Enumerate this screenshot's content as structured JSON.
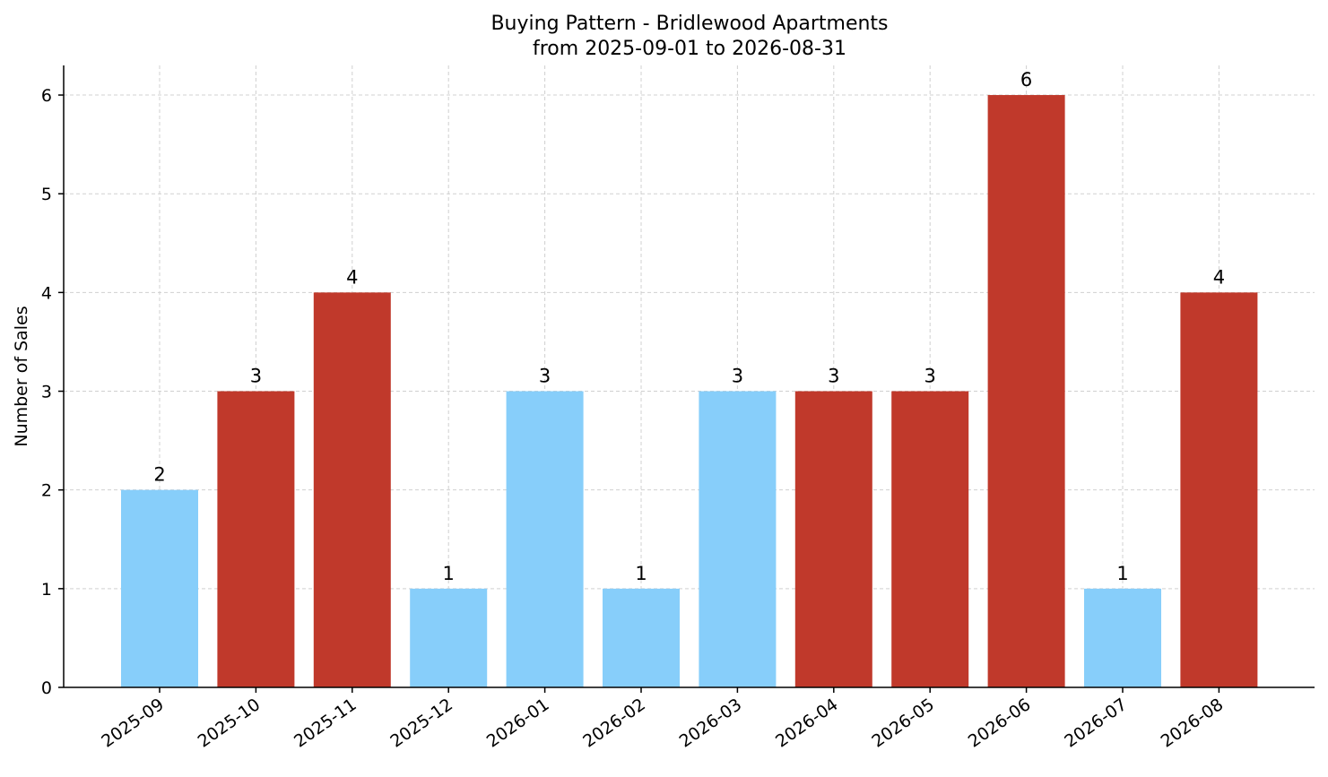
{
  "chart_data": {
    "type": "bar",
    "title": "Buying Pattern - Bridlewood Apartments",
    "subtitle": "from 2025-09-01 to 2026-08-31",
    "xlabel": "",
    "ylabel": "Number of Sales",
    "categories": [
      "2025-09",
      "2025-10",
      "2025-11",
      "2025-12",
      "2026-01",
      "2026-02",
      "2026-03",
      "2026-04",
      "2026-05",
      "2026-06",
      "2026-07",
      "2026-08"
    ],
    "values": [
      2,
      3,
      4,
      1,
      3,
      1,
      3,
      3,
      3,
      6,
      1,
      4
    ],
    "bar_colors": [
      "#87cefa",
      "#c0392b",
      "#c0392b",
      "#87cefa",
      "#87cefa",
      "#87cefa",
      "#87cefa",
      "#c0392b",
      "#c0392b",
      "#c0392b",
      "#87cefa",
      "#c0392b"
    ],
    "ylim": [
      0,
      6.3
    ],
    "yticks": [
      0,
      1,
      2,
      3,
      4,
      5,
      6
    ],
    "grid": true,
    "data_labels": true
  }
}
